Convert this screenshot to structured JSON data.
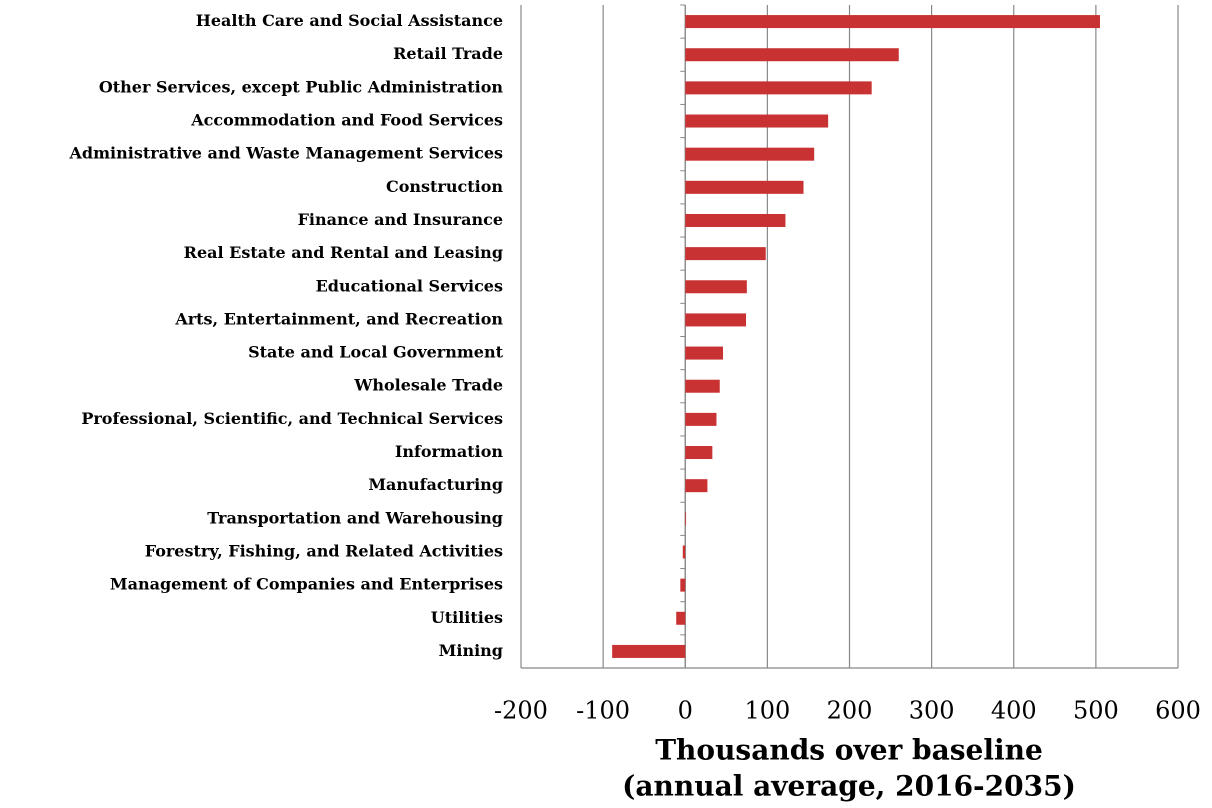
{
  "chart_data": {
    "type": "barh",
    "categories": [
      "Health Care and Social Assistance",
      "Retail Trade",
      "Other Services, except Public Administration",
      "Accommodation and Food Services",
      "Administrative and Waste Management Services",
      "Construction",
      "Finance and Insurance",
      "Real Estate and Rental and Leasing",
      "Educational Services",
      "Arts, Entertainment, and Recreation",
      "State and Local Government",
      "Wholesale Trade",
      "Professional, Scientific, and Technical Services",
      "Information",
      "Manufacturing",
      "Transportation and Warehousing",
      "Forestry, Fishing, and Related Activities",
      "Management of Companies and Enterprises",
      "Utilities",
      "Mining"
    ],
    "values": [
      505,
      260,
      227,
      174,
      157,
      144,
      122,
      98,
      75,
      74,
      46,
      42,
      38,
      33,
      27,
      1,
      -3,
      -6,
      -11,
      -89
    ],
    "color": "#c93232",
    "xlim": [
      -200,
      600
    ],
    "xticks": [
      -200,
      -100,
      0,
      100,
      200,
      300,
      400,
      500,
      600
    ],
    "grid": true,
    "xlabel": [
      "Thousands over baseline",
      "(annual average, 2016-2035)"
    ]
  }
}
